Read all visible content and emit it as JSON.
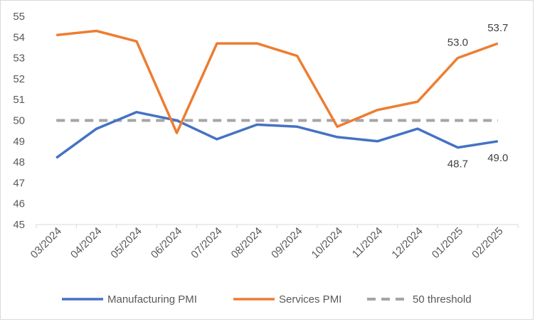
{
  "chart_data": {
    "type": "line",
    "title": "",
    "xlabel": "",
    "ylabel": "",
    "ylim": [
      45,
      55
    ],
    "yticks": [
      45,
      46,
      47,
      48,
      49,
      50,
      51,
      52,
      53,
      54,
      55
    ],
    "categories": [
      "03/2024",
      "04/2024",
      "05/2024",
      "06/2024",
      "07/2024",
      "08/2024",
      "09/2024",
      "10/2024",
      "11/2024",
      "12/2024",
      "01/2025",
      "02/2025"
    ],
    "series": [
      {
        "name": "Manufacturing PMI",
        "color": "#4472c4",
        "style": "solid",
        "values": [
          48.2,
          49.6,
          50.4,
          50.0,
          49.1,
          49.8,
          49.7,
          49.2,
          49.0,
          49.6,
          48.7,
          49.0
        ]
      },
      {
        "name": "Services PMI",
        "color": "#ed7d31",
        "style": "solid",
        "values": [
          54.1,
          54.3,
          53.8,
          49.4,
          53.7,
          53.7,
          53.1,
          49.7,
          50.5,
          50.9,
          53.0,
          53.7
        ]
      },
      {
        "name": "50 threshold",
        "color": "#a5a5a5",
        "style": "dashed",
        "values": [
          50,
          50,
          50,
          50,
          50,
          50,
          50,
          50,
          50,
          50,
          50,
          50
        ]
      }
    ],
    "data_labels": [
      {
        "series": 0,
        "index": 10,
        "text": "48.7",
        "position": "below"
      },
      {
        "series": 0,
        "index": 11,
        "text": "49.0",
        "position": "below"
      },
      {
        "series": 1,
        "index": 10,
        "text": "53.0",
        "position": "above"
      },
      {
        "series": 1,
        "index": 11,
        "text": "53.7",
        "position": "above"
      }
    ],
    "legend_position": "bottom",
    "grid": false
  }
}
